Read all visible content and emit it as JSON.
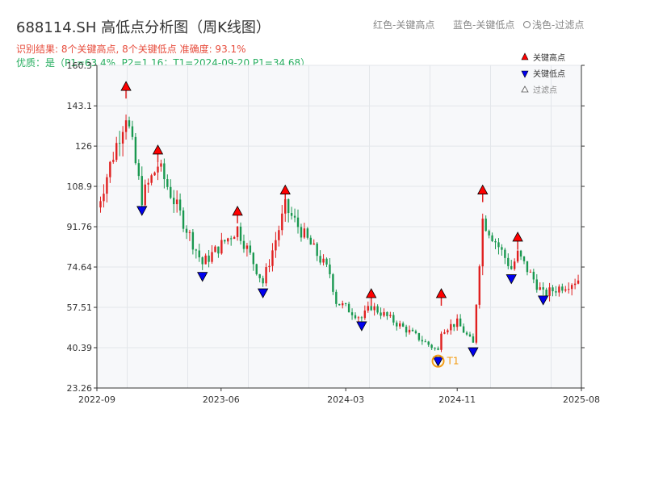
{
  "header": {
    "title": "688114.SH 高低点分析图（周K线图）",
    "stats_line": "识别结果: 8个关键高点, 8个关键低点  准确度: 93.1%",
    "quality_line": "优质：是（P1=63.4%, P2=1.16；T1=2024-09-20 P1=34.68）",
    "legend_red": "红色-关键高点",
    "legend_blue": "蓝色-关键低点",
    "legend_light": "浅色-过滤点"
  },
  "colors": {
    "up": "#e02020",
    "down": "#1a9850",
    "high_marker": "#ff0000",
    "low_marker": "#0000ee",
    "t1": "#f39c12",
    "grid": "#e3e6ea",
    "plot_bg": "#f7f8fa"
  },
  "chart_data": {
    "type": "candlestick",
    "title": "688114.SH 高低点分析图（周K线图）",
    "x_ticks": [
      "2022-09",
      "2023-06",
      "2024-03",
      "2024-11",
      "2025-08"
    ],
    "y_ticks": [
      23.26,
      40.39,
      57.51,
      74.64,
      91.76,
      108.9,
      126.0,
      143.1,
      160.3
    ],
    "ylim": [
      23.26,
      160.3
    ],
    "xlim": [
      "2022-09",
      "2025-08"
    ],
    "grid": true,
    "legend_position": "top-right",
    "legend": [
      "关键高点",
      "关键低点",
      "过滤点"
    ],
    "key_highs": [
      {
        "date": "2022-11-04",
        "price": 151
      },
      {
        "date": "2023-01-13",
        "price": 124
      },
      {
        "date": "2023-07-07",
        "price": 98
      },
      {
        "date": "2023-10-20",
        "price": 107
      },
      {
        "date": "2024-04-26",
        "price": 63
      },
      {
        "date": "2024-09-27",
        "price": 63
      },
      {
        "date": "2024-12-27",
        "price": 107
      },
      {
        "date": "2025-03-14",
        "price": 87
      }
    ],
    "key_lows": [
      {
        "date": "2022-12-09",
        "price": 99
      },
      {
        "date": "2023-04-21",
        "price": 71
      },
      {
        "date": "2023-09-01",
        "price": 64
      },
      {
        "date": "2024-04-05",
        "price": 50
      },
      {
        "date": "2024-09-20",
        "price": 35
      },
      {
        "date": "2024-12-06",
        "price": 39
      },
      {
        "date": "2025-02-28",
        "price": 70
      },
      {
        "date": "2025-05-09",
        "price": 61
      }
    ],
    "t1": {
      "label": "T1",
      "date": "2024-09-20",
      "price": 34.68
    }
  }
}
